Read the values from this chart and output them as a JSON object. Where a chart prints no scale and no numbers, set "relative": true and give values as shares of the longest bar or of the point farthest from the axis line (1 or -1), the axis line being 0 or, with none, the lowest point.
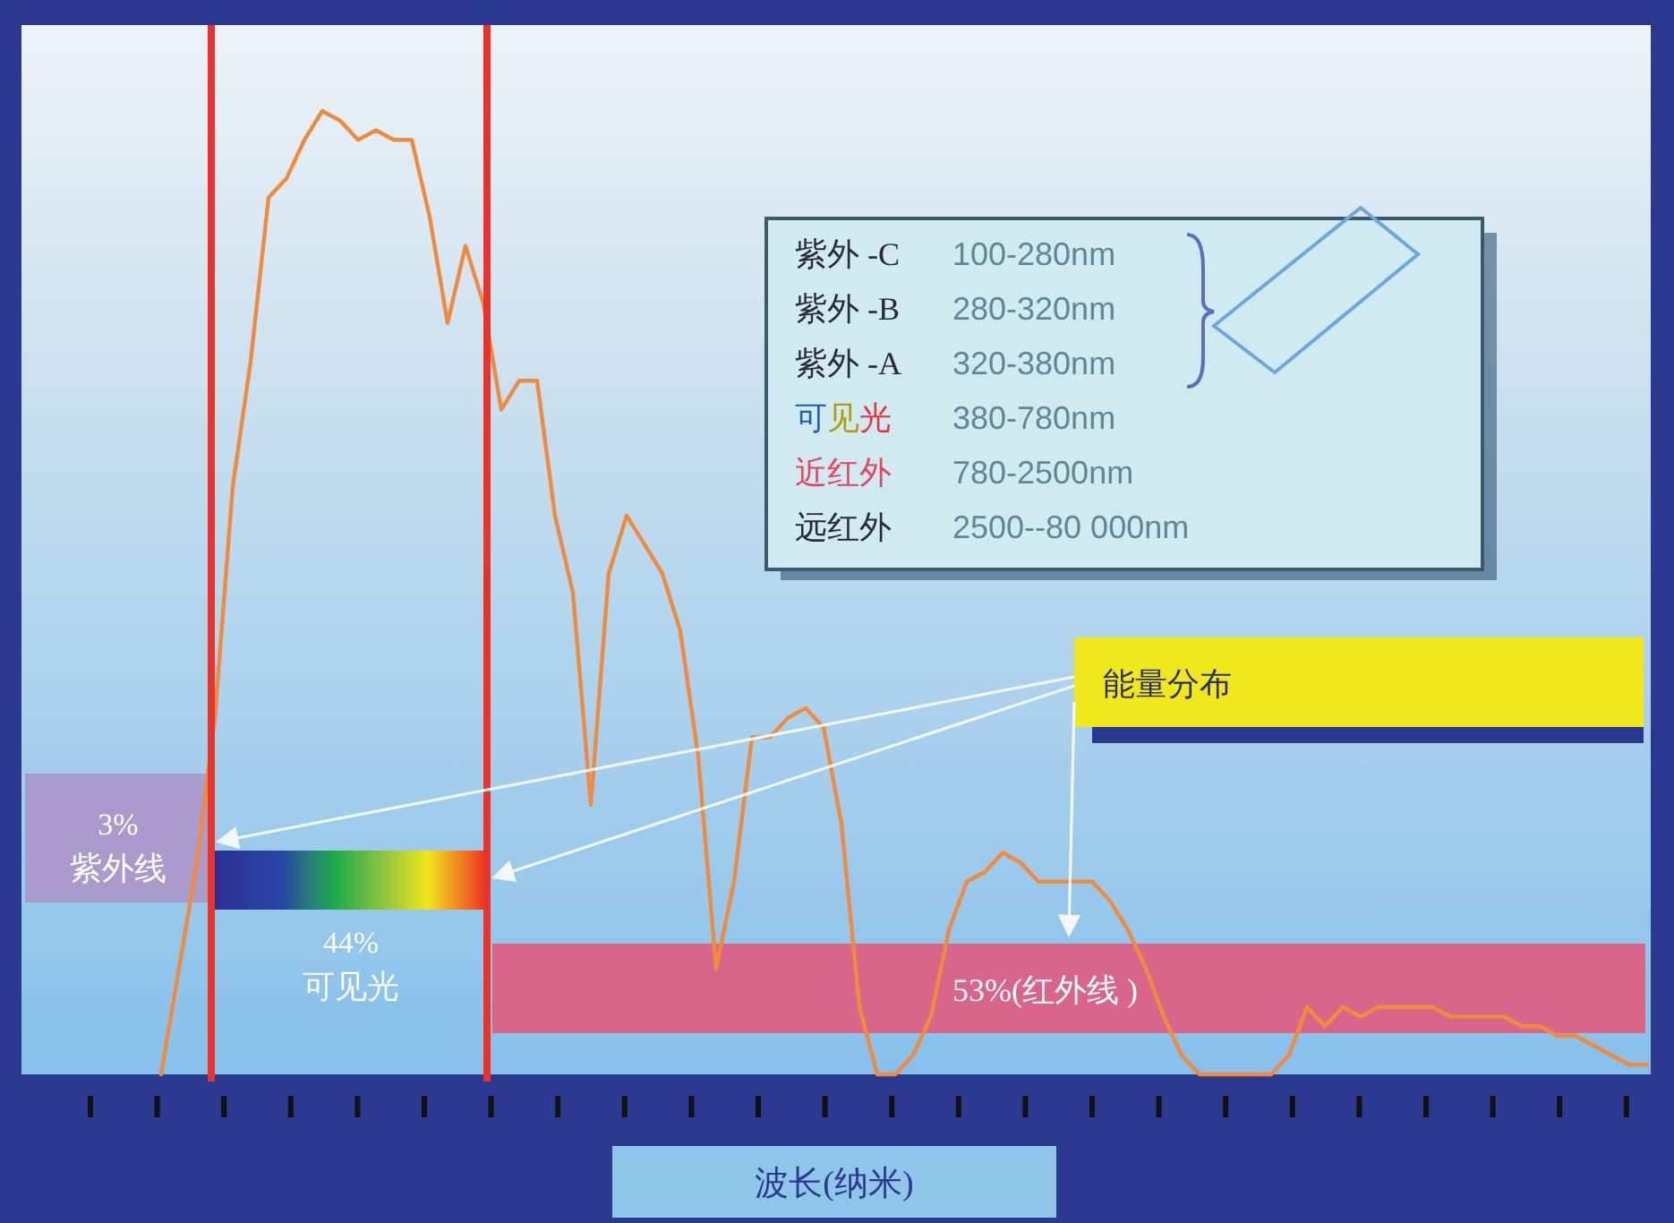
{
  "chart_data": {
    "type": "line",
    "relative": true,
    "xlabel": "波长(纳米)",
    "marker": "none",
    "line_style": "solid",
    "categories": [
      null,
      null,
      null,
      null,
      null,
      null,
      null,
      null,
      null,
      null,
      null,
      null,
      null,
      null,
      null,
      null,
      null,
      null,
      null,
      null,
      null,
      null,
      null,
      null,
      null,
      null,
      null,
      null,
      null,
      null,
      null,
      null,
      null,
      null,
      null,
      null,
      null,
      null,
      null,
      null,
      null,
      null,
      null,
      null,
      null,
      null,
      null,
      null,
      null,
      null,
      null,
      null,
      null,
      null,
      null,
      null,
      null,
      null,
      null,
      null,
      null,
      null,
      null,
      null,
      null,
      null,
      null,
      null,
      null,
      null,
      null,
      null,
      null,
      null,
      null,
      null,
      null,
      null,
      null,
      null,
      null,
      null,
      null,
      null
    ],
    "series": [
      {
        "color": "#f08a3c",
        "values": [
          0,
          0.11,
          0.22,
          0.37,
          0.61,
          0.74,
          0.91,
          0.93,
          0.97,
          1,
          0.99,
          0.97,
          0.98,
          0.97,
          0.97,
          0.89,
          0.78,
          0.86,
          0.8,
          0.69,
          0.72,
          0.72,
          0.58,
          0.5,
          0.28,
          0.52,
          0.58,
          0.55,
          0.52,
          0.46,
          0.33,
          0.11,
          0.2,
          0.35,
          0.35,
          0.37,
          0.38,
          0.36,
          0.26,
          0.07,
          0,
          0,
          0.02,
          0.06,
          0.15,
          0.2,
          0.21,
          0.23,
          0.22,
          0.2,
          0.2,
          0.2,
          0.2,
          0.18,
          0.15,
          0.11,
          0.06,
          0.02,
          0,
          0,
          0,
          0,
          0,
          0.02,
          0.07,
          0.05,
          0.07,
          0.06,
          0.07,
          0.07,
          0.07,
          0.07,
          0.06,
          0.06,
          0.06,
          0.06,
          0.05,
          0.05,
          0.04,
          0.04,
          0.03,
          0.02,
          0.01,
          0.01
        ]
      }
    ],
    "annotations": [
      "紫外 -C",
      "100-280nm",
      "紫外 -B",
      "280-320nm",
      "紫外 -A",
      "320-380nm",
      "可见光",
      "380-780nm",
      "近红外",
      "780-2500nm",
      "远红外",
      "2500--80 000nm",
      "能量分布",
      "3%",
      "紫外线",
      "44%",
      "可见光",
      "53%(红外线 )"
    ]
  }
}
